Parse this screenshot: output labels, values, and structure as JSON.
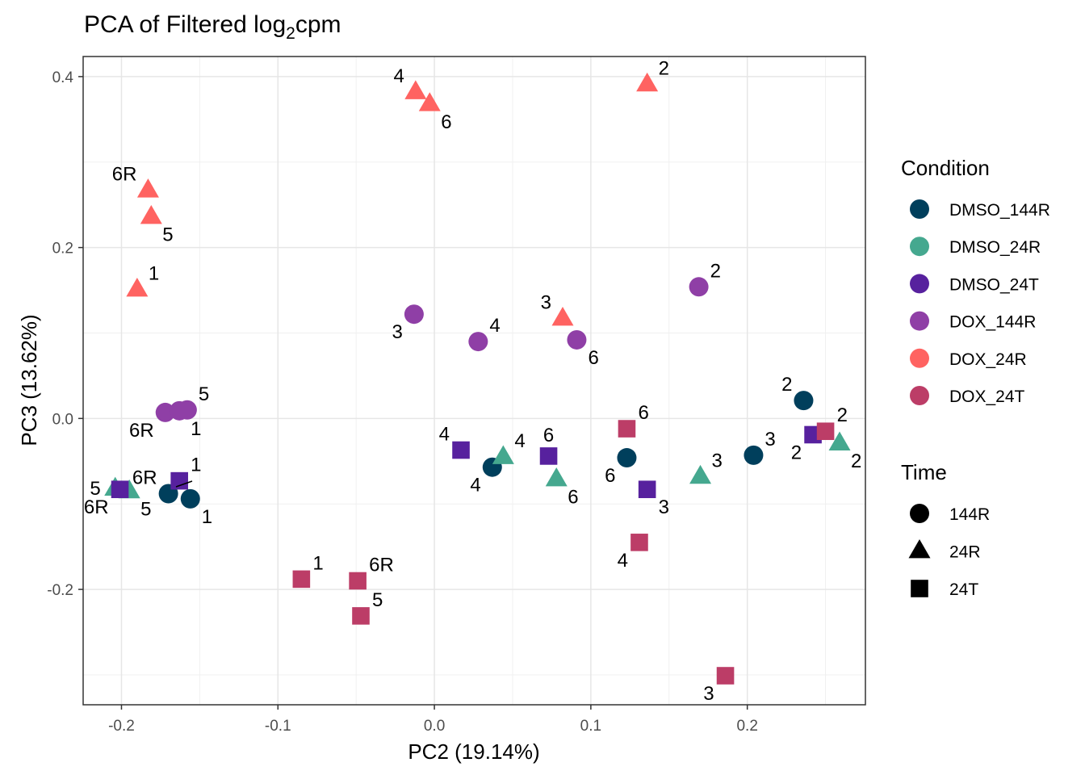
{
  "chart_data": {
    "type": "scatter",
    "title": {
      "main": "PCA of Filtered log",
      "subscript": "2",
      "suffix": "cpm"
    },
    "xlabel": "PC2 (19.14%)",
    "ylabel": "PC3 (13.62%)",
    "xlim": [
      -0.2245,
      0.2755
    ],
    "ylim": [
      -0.335,
      0.4235
    ],
    "x_ticks": [
      -0.2,
      -0.1,
      0.0,
      0.1,
      0.2
    ],
    "x_tick_labels": [
      "-0.2",
      "-0.1",
      "0.0",
      "0.1",
      "0.2"
    ],
    "y_ticks": [
      -0.2,
      0.0,
      0.2,
      0.4
    ],
    "y_tick_labels": [
      "-0.2",
      "0.0",
      "0.2",
      "0.4"
    ],
    "grid": true,
    "legend_position": "right",
    "legend": {
      "condition_title": "Condition",
      "conditions": [
        {
          "name": "DMSO_144R",
          "color": "#003f5c"
        },
        {
          "name": "DMSO_24R",
          "color": "#45a88f"
        },
        {
          "name": "DMSO_24T",
          "color": "#57219e"
        },
        {
          "name": "DOX_144R",
          "color": "#8f3fa6"
        },
        {
          "name": "DOX_24R",
          "color": "#ff6361"
        },
        {
          "name": "DOX_24T",
          "color": "#bc3d67"
        }
      ],
      "time_title": "Time",
      "times": [
        {
          "name": "144R",
          "shape": "circle"
        },
        {
          "name": "24R",
          "shape": "triangle"
        },
        {
          "name": "24T",
          "shape": "square"
        }
      ]
    },
    "points": [
      {
        "condition": "DMSO_144R",
        "time": "144R",
        "x": 0.236,
        "y": 0.021,
        "label": "2",
        "lpos": "nw"
      },
      {
        "condition": "DMSO_144R",
        "time": "144R",
        "x": 0.204,
        "y": -0.043,
        "label": "3",
        "lpos": "ne"
      },
      {
        "condition": "DMSO_144R",
        "time": "144R",
        "x": 0.037,
        "y": -0.057,
        "label": "4",
        "lpos": "sw"
      },
      {
        "condition": "DMSO_144R",
        "time": "144R",
        "x": 0.123,
        "y": -0.046,
        "label": "6",
        "lpos": "sw"
      },
      {
        "condition": "DMSO_144R",
        "time": "144R",
        "x": -0.17,
        "y": -0.088,
        "label": "6R",
        "lpos": "nw"
      },
      {
        "condition": "DMSO_144R",
        "time": "144R",
        "x": -0.156,
        "y": -0.094,
        "label": "1",
        "lpos": "se"
      },
      {
        "condition": "DMSO_24R",
        "time": "24R",
        "x": 0.259,
        "y": -0.029,
        "label": "2",
        "lpos": "se"
      },
      {
        "condition": "DMSO_24R",
        "time": "24R",
        "x": 0.17,
        "y": -0.068,
        "label": "3",
        "lpos": "ne"
      },
      {
        "condition": "DMSO_24R",
        "time": "24R",
        "x": 0.044,
        "y": -0.045,
        "label": "4",
        "lpos": "ne"
      },
      {
        "condition": "DMSO_24R",
        "time": "24R",
        "x": 0.078,
        "y": -0.071,
        "label": "6",
        "lpos": "se"
      },
      {
        "condition": "DMSO_24R",
        "time": "24R",
        "x": -0.204,
        "y": -0.082,
        "label": "5",
        "lpos": "w"
      },
      {
        "condition": "DMSO_24R",
        "time": "24R",
        "x": -0.195,
        "y": -0.085,
        "label": "5",
        "lpos": "se"
      },
      {
        "condition": "DMSO_24T",
        "time": "24T",
        "x": 0.242,
        "y": -0.019,
        "label": "2",
        "lpos": "sw"
      },
      {
        "condition": "DMSO_24T",
        "time": "24T",
        "x": 0.136,
        "y": -0.083,
        "label": "3",
        "lpos": "se"
      },
      {
        "condition": "DMSO_24T",
        "time": "24T",
        "x": 0.017,
        "y": -0.037,
        "label": "4",
        "lpos": "nw"
      },
      {
        "condition": "DMSO_24T",
        "time": "24T",
        "x": 0.073,
        "y": -0.044,
        "label": "6",
        "lpos": "n"
      },
      {
        "condition": "DMSO_24T",
        "time": "24T",
        "x": -0.163,
        "y": -0.073,
        "label": "1",
        "lpos": "ne"
      },
      {
        "condition": "DMSO_24T",
        "time": "24T",
        "x": -0.201,
        "y": -0.083,
        "label": "6R",
        "lpos": "sw"
      },
      {
        "condition": "DOX_144R",
        "time": "144R",
        "x": 0.169,
        "y": 0.154,
        "label": "2",
        "lpos": "ne"
      },
      {
        "condition": "DOX_144R",
        "time": "144R",
        "x": -0.013,
        "y": 0.122,
        "label": "3",
        "lpos": "sw"
      },
      {
        "condition": "DOX_144R",
        "time": "144R",
        "x": 0.028,
        "y": 0.09,
        "label": "4",
        "lpos": "ne"
      },
      {
        "condition": "DOX_144R",
        "time": "144R",
        "x": 0.091,
        "y": 0.092,
        "label": "6",
        "lpos": "se"
      },
      {
        "condition": "DOX_144R",
        "time": "144R",
        "x": -0.172,
        "y": 0.007,
        "label": "6R",
        "lpos": "sw"
      },
      {
        "condition": "DOX_144R",
        "time": "144R",
        "x": -0.163,
        "y": 0.009,
        "label": "1",
        "lpos": "se"
      },
      {
        "condition": "DOX_144R",
        "time": "144R",
        "x": -0.158,
        "y": 0.01,
        "label": "5",
        "lpos": "ne"
      },
      {
        "condition": "DOX_24R",
        "time": "24R",
        "x": 0.136,
        "y": 0.391,
        "label": "2",
        "lpos": "ne"
      },
      {
        "condition": "DOX_24R",
        "time": "24R",
        "x": 0.082,
        "y": 0.117,
        "label": "3",
        "lpos": "nw"
      },
      {
        "condition": "DOX_24R",
        "time": "24R",
        "x": -0.012,
        "y": 0.382,
        "label": "4",
        "lpos": "nw"
      },
      {
        "condition": "DOX_24R",
        "time": "24R",
        "x": -0.003,
        "y": 0.368,
        "label": "6",
        "lpos": "se"
      },
      {
        "condition": "DOX_24R",
        "time": "24R",
        "x": -0.183,
        "y": 0.267,
        "label": "6R",
        "lpos": "nw"
      },
      {
        "condition": "DOX_24R",
        "time": "24R",
        "x": -0.181,
        "y": 0.236,
        "label": "5",
        "lpos": "se"
      },
      {
        "condition": "DOX_24R",
        "time": "24R",
        "x": -0.19,
        "y": 0.151,
        "label": "1",
        "lpos": "ne"
      },
      {
        "condition": "DOX_24T",
        "time": "24T",
        "x": 0.25,
        "y": -0.015,
        "label": "2",
        "lpos": "ne"
      },
      {
        "condition": "DOX_24T",
        "time": "24T",
        "x": 0.186,
        "y": -0.301,
        "label": "3",
        "lpos": "sw"
      },
      {
        "condition": "DOX_24T",
        "time": "24T",
        "x": 0.131,
        "y": -0.145,
        "label": "4",
        "lpos": "sw"
      },
      {
        "condition": "DOX_24T",
        "time": "24T",
        "x": 0.123,
        "y": -0.012,
        "label": "6",
        "lpos": "ne"
      },
      {
        "condition": "DOX_24T",
        "time": "24T",
        "x": -0.085,
        "y": -0.188,
        "label": "1",
        "lpos": "ne"
      },
      {
        "condition": "DOX_24T",
        "time": "24T",
        "x": -0.049,
        "y": -0.19,
        "label": "6R",
        "lpos": "ne"
      },
      {
        "condition": "DOX_24T",
        "time": "24T",
        "x": -0.047,
        "y": -0.231,
        "label": "5",
        "lpos": "ne"
      }
    ]
  }
}
